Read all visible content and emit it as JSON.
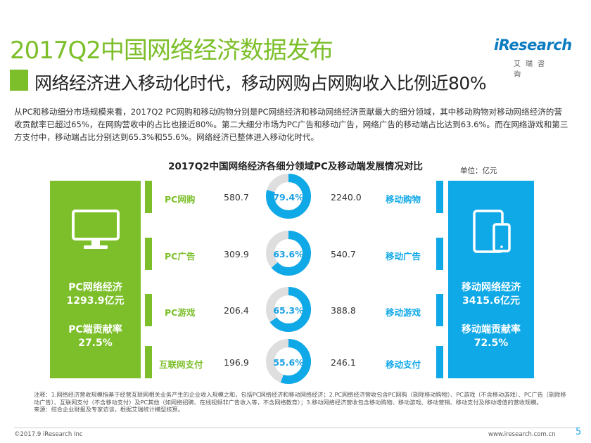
{
  "header": {
    "title": "2017Q2中国网络经济数据发布",
    "subtitle": "网络经济进入移动化时代，移动网购占网购收入比例近80%",
    "logo_text": "iResearch",
    "logo_sub": "艾瑞咨询"
  },
  "description": "从PC和移动细分市场规模来看，2017Q2 PC网购和移动购物分别是PC网络经济和移动网络经济贡献最大的细分领域，其中移动购物对移动网络经济的营收贡献率已超过65%，在网购营收中的占比也接近80%。第二大细分市场为PC广告和移动广告，网络广告的移动端占比达到63.6%。而在网络游戏和第三方支付中，移动端占比分别达到65.3%和55.6%。网络经济已整体进入移动化时代。",
  "colors": {
    "green": "#7cbf2a",
    "blue": "#10a9e8",
    "ring_gray": "#dedede",
    "text_blue": "#1ba1e2"
  },
  "chart_data": {
    "type": "pie",
    "title": "2017Q2中国网络经济各细分领域PC及移动端发展情况对比",
    "unit": "单位：亿元",
    "left_panel": {
      "line1": "PC网络经济",
      "line2": "1293.9亿元",
      "line3": "PC端贡献率",
      "line4": "27.5%",
      "icon": "monitor-icon"
    },
    "right_panel": {
      "line1": "移动网络经济",
      "line2": "3415.6亿元",
      "line3": "移动端贡献率",
      "line4": "72.5%",
      "icon": "mobile-devices-icon"
    },
    "rows": [
      {
        "pc_label": "PC网购",
        "pc_value": 580.7,
        "mobile_share_label": "79.4%",
        "mobile_share": 79.4,
        "mobile_value": 2240.0,
        "mobile_label": "移动购物",
        "pc_value_text": "580.7",
        "mobile_value_text": "2240.0"
      },
      {
        "pc_label": "PC广告",
        "pc_value": 309.9,
        "mobile_share_label": "63.6%",
        "mobile_share": 63.6,
        "mobile_value": 540.7,
        "mobile_label": "移动广告",
        "pc_value_text": "309.9",
        "mobile_value_text": "540.7"
      },
      {
        "pc_label": "PC游戏",
        "pc_value": 206.4,
        "mobile_share_label": "65.3%",
        "mobile_share": 65.3,
        "mobile_value": 388.8,
        "mobile_label": "移动游戏",
        "pc_value_text": "206.4",
        "mobile_value_text": "388.8"
      },
      {
        "pc_label": "互联网支付",
        "pc_value": 196.9,
        "mobile_share_label": "55.6%",
        "mobile_share": 55.6,
        "mobile_value": 246.1,
        "mobile_label": "移动支付",
        "pc_value_text": "196.9",
        "mobile_value_text": "246.1"
      }
    ]
  },
  "footer": {
    "notes": "注释：1.网络经济营收规模指基于经营互联网相关业务产生的企业收入规模之和，包括PC网络经济和移动网络经济；2.PC网络经济营收包含PC网购（剔除移动购物）、PC游戏（不含移动游戏）、PC广告（剔除移动广告）、互联网支付（不含移动支付）及PC其他（如网络招聘、在线视频非广告收入等，不含网络教育）；3.移动网络经济营收包含移动购物、移动游戏、移动营销、移动支付及移动增值的营收规模。",
    "source": "来源：综合企业财报及专家访谈，根据艾瑞统计模型核算。",
    "copyright": "©2017.9 iResearch Inc",
    "website": "www.iresearch.com.cn",
    "page": "5"
  }
}
